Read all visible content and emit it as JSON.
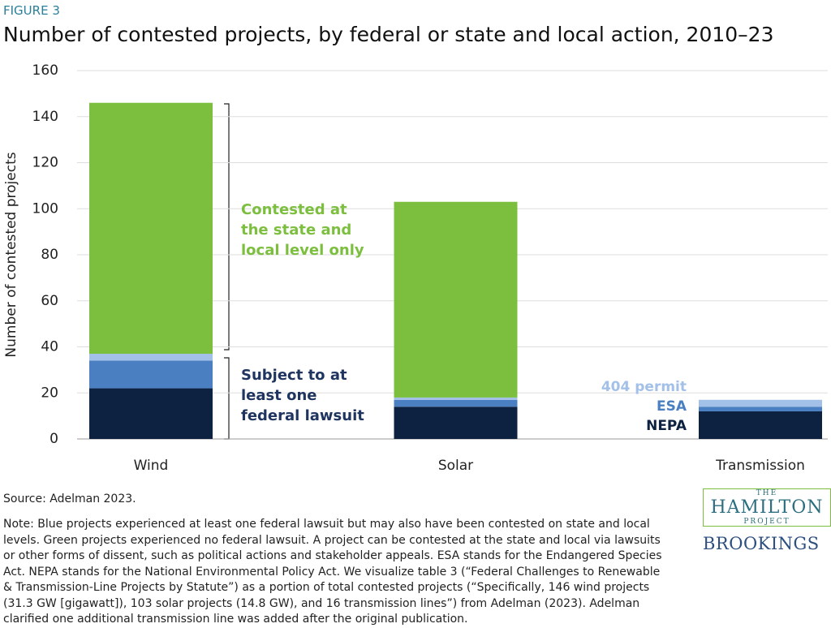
{
  "chart_data": {
    "type": "bar",
    "stacked": true,
    "figure_label": "FIGURE 3",
    "title": "Number of contested projects, by federal or state and local action, 2010–23",
    "y_label": "Number of contested projects",
    "categories": [
      "Wind",
      "Solar",
      "Transmission"
    ],
    "series": [
      {
        "name": "NEPA",
        "color": "#0d2240",
        "values": [
          22,
          14,
          12
        ]
      },
      {
        "name": "ESA",
        "color": "#4a7fc1",
        "values": [
          12,
          3,
          2
        ]
      },
      {
        "name": "404 permit",
        "color": "#a3c0e8",
        "values": [
          3,
          1,
          3
        ]
      },
      {
        "name": "Contested at the state and local level only",
        "color": "#7cbf3f",
        "values": [
          109,
          85,
          0
        ]
      }
    ],
    "annotation": "Subject to at least one federal lawsuit",
    "ylim": [
      0,
      160
    ],
    "yticks": [
      0,
      20,
      40,
      60,
      80,
      100,
      120,
      140,
      160
    ],
    "grid": true,
    "source": "Source: Adelman 2023.",
    "note": "Note: Blue projects experienced at least one federal lawsuit but may also have been contested on state and local levels. Green projects experienced no federal lawsuit. A project can be contested at the state and local via lawsuits or other forms of dissent, such as political actions and stakeholder appeals. ESA stands for the Endangered Species Act. NEPA stands for the National Environmental Policy Act. We visualize table 3 (“Federal Challenges to Renewable & Transmission-Line Projects by Statute”) as a portion of total contested projects (“Specifically, 146 wind projects (31.3 GW [gigawatt]), 103 solar projects (14.8 GW), and 16 transmission lines”) from Adelman (2023). Adelman clarified one additional transmission line was added after the original publication."
  },
  "branding": {
    "hamilton_top": "THE",
    "hamilton_main": "HAMILTON",
    "hamilton_bottom": "PROJECT",
    "brookings": "BROOKINGS"
  }
}
